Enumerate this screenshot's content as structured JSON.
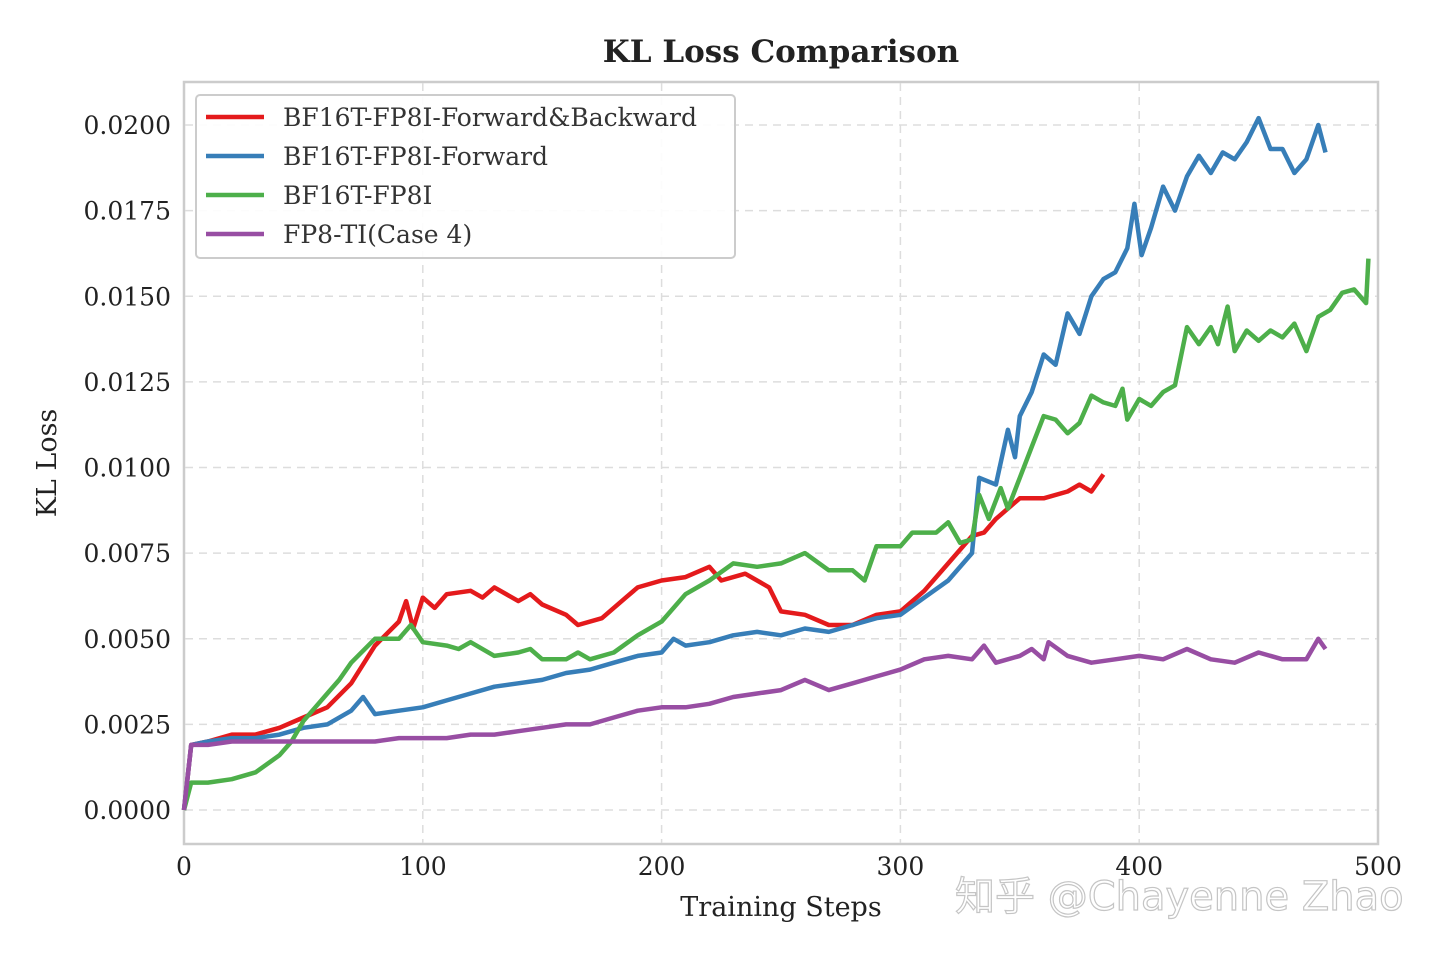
{
  "chart_data": {
    "type": "line",
    "title": "KL Loss Comparison",
    "xlabel": "Training Steps",
    "ylabel": "KL Loss",
    "xlim": [
      0,
      500
    ],
    "ylim": [
      -0.001,
      0.0213
    ],
    "xticks": [
      "0",
      "100",
      "200",
      "300",
      "400",
      "500"
    ],
    "xtick_values": [
      0,
      100,
      200,
      300,
      400,
      500
    ],
    "yticks": [
      "0.0000",
      "0.0025",
      "0.0050",
      "0.0075",
      "0.0100",
      "0.0125",
      "0.0150",
      "0.0175",
      "0.0200"
    ],
    "ytick_values": [
      0,
      0.0025,
      0.005,
      0.0075,
      0.01,
      0.0125,
      0.015,
      0.0175,
      0.02
    ],
    "grid": true,
    "legend_position": "top-left",
    "series": [
      {
        "name": "BF16T-FP8I-Forward&Backward",
        "color": "#e41a1c",
        "x": [
          0,
          3,
          10,
          20,
          30,
          40,
          50,
          60,
          70,
          80,
          90,
          93,
          96,
          100,
          105,
          110,
          120,
          125,
          130,
          140,
          145,
          150,
          160,
          165,
          175,
          185,
          190,
          200,
          210,
          220,
          225,
          235,
          245,
          250,
          260,
          270,
          280,
          290,
          300,
          310,
          320,
          330,
          335,
          340,
          350,
          360,
          370,
          375,
          380,
          385
        ],
        "y": [
          0,
          0.0019,
          0.002,
          0.0022,
          0.0022,
          0.0024,
          0.0027,
          0.003,
          0.0037,
          0.0048,
          0.0055,
          0.0061,
          0.0053,
          0.0062,
          0.0059,
          0.0063,
          0.0064,
          0.0062,
          0.0065,
          0.0061,
          0.0063,
          0.006,
          0.0057,
          0.0054,
          0.0056,
          0.0062,
          0.0065,
          0.0067,
          0.0068,
          0.0071,
          0.0067,
          0.0069,
          0.0065,
          0.0058,
          0.0057,
          0.0054,
          0.0054,
          0.0057,
          0.0058,
          0.0064,
          0.0072,
          0.008,
          0.0081,
          0.0085,
          0.0091,
          0.0091,
          0.0093,
          0.0095,
          0.0093,
          0.0098
        ]
      },
      {
        "name": "BF16T-FP8I-Forward",
        "color": "#377eb8",
        "x": [
          0,
          3,
          10,
          20,
          30,
          40,
          50,
          60,
          70,
          75,
          80,
          90,
          100,
          110,
          120,
          130,
          140,
          150,
          160,
          170,
          180,
          190,
          200,
          205,
          210,
          220,
          230,
          240,
          250,
          260,
          270,
          280,
          290,
          300,
          310,
          320,
          330,
          333,
          340,
          345,
          348,
          350,
          355,
          360,
          365,
          370,
          375,
          380,
          385,
          390,
          395,
          398,
          401,
          405,
          410,
          415,
          420,
          425,
          430,
          435,
          440,
          445,
          450,
          455,
          460,
          465,
          470,
          475,
          478
        ],
        "y": [
          0,
          0.0019,
          0.002,
          0.0021,
          0.0021,
          0.0022,
          0.0024,
          0.0025,
          0.0029,
          0.0033,
          0.0028,
          0.0029,
          0.003,
          0.0032,
          0.0034,
          0.0036,
          0.0037,
          0.0038,
          0.004,
          0.0041,
          0.0043,
          0.0045,
          0.0046,
          0.005,
          0.0048,
          0.0049,
          0.0051,
          0.0052,
          0.0051,
          0.0053,
          0.0052,
          0.0054,
          0.0056,
          0.0057,
          0.0062,
          0.0067,
          0.0075,
          0.0097,
          0.0095,
          0.0111,
          0.0103,
          0.0115,
          0.0122,
          0.0133,
          0.013,
          0.0145,
          0.0139,
          0.015,
          0.0155,
          0.0157,
          0.0164,
          0.0177,
          0.0162,
          0.017,
          0.0182,
          0.0175,
          0.0185,
          0.0191,
          0.0186,
          0.0192,
          0.019,
          0.0195,
          0.0202,
          0.0193,
          0.0193,
          0.0186,
          0.019,
          0.02,
          0.0192
        ]
      },
      {
        "name": "BF16T-FP8I",
        "color": "#4daf4a",
        "x": [
          0,
          3,
          10,
          20,
          30,
          40,
          45,
          50,
          55,
          60,
          65,
          70,
          80,
          90,
          95,
          100,
          110,
          115,
          120,
          130,
          140,
          145,
          150,
          160,
          165,
          170,
          180,
          190,
          200,
          210,
          220,
          230,
          240,
          250,
          260,
          270,
          280,
          285,
          290,
          300,
          305,
          315,
          320,
          325,
          330,
          333,
          337,
          342,
          345,
          350,
          355,
          360,
          365,
          370,
          375,
          380,
          385,
          390,
          393,
          395,
          400,
          405,
          410,
          415,
          420,
          425,
          430,
          433,
          437,
          440,
          445,
          450,
          455,
          460,
          465,
          470,
          475,
          480,
          485,
          490,
          495,
          496
        ],
        "y": [
          0,
          0.0008,
          0.0008,
          0.0009,
          0.0011,
          0.0016,
          0.002,
          0.0026,
          0.003,
          0.0034,
          0.0038,
          0.0043,
          0.005,
          0.005,
          0.0054,
          0.0049,
          0.0048,
          0.0047,
          0.0049,
          0.0045,
          0.0046,
          0.0047,
          0.0044,
          0.0044,
          0.0046,
          0.0044,
          0.0046,
          0.0051,
          0.0055,
          0.0063,
          0.0067,
          0.0072,
          0.0071,
          0.0072,
          0.0075,
          0.007,
          0.007,
          0.0067,
          0.0077,
          0.0077,
          0.0081,
          0.0081,
          0.0084,
          0.0078,
          0.0079,
          0.0092,
          0.0085,
          0.0094,
          0.0088,
          0.0097,
          0.0106,
          0.0115,
          0.0114,
          0.011,
          0.0113,
          0.0121,
          0.0119,
          0.0118,
          0.0123,
          0.0114,
          0.012,
          0.0118,
          0.0122,
          0.0124,
          0.0141,
          0.0136,
          0.0141,
          0.0136,
          0.0147,
          0.0134,
          0.014,
          0.0137,
          0.014,
          0.0138,
          0.0142,
          0.0134,
          0.0144,
          0.0146,
          0.0151,
          0.0152,
          0.0148,
          0.0161
        ]
      },
      {
        "name": "FP8-TI(Case 4)",
        "color": "#984ea3",
        "x": [
          0,
          3,
          10,
          20,
          30,
          40,
          50,
          60,
          70,
          80,
          90,
          100,
          110,
          120,
          130,
          140,
          150,
          160,
          170,
          180,
          190,
          200,
          210,
          220,
          230,
          240,
          250,
          260,
          270,
          280,
          290,
          300,
          310,
          320,
          330,
          335,
          340,
          350,
          355,
          360,
          362,
          370,
          380,
          390,
          400,
          410,
          420,
          430,
          440,
          450,
          460,
          470,
          475,
          478
        ],
        "y": [
          0,
          0.0019,
          0.0019,
          0.002,
          0.002,
          0.002,
          0.002,
          0.002,
          0.002,
          0.002,
          0.0021,
          0.0021,
          0.0021,
          0.0022,
          0.0022,
          0.0023,
          0.0024,
          0.0025,
          0.0025,
          0.0027,
          0.0029,
          0.003,
          0.003,
          0.0031,
          0.0033,
          0.0034,
          0.0035,
          0.0038,
          0.0035,
          0.0037,
          0.0039,
          0.0041,
          0.0044,
          0.0045,
          0.0044,
          0.0048,
          0.0043,
          0.0045,
          0.0047,
          0.0044,
          0.0049,
          0.0045,
          0.0043,
          0.0044,
          0.0045,
          0.0044,
          0.0047,
          0.0044,
          0.0043,
          0.0046,
          0.0044,
          0.0044,
          0.005,
          0.0047
        ]
      }
    ]
  },
  "watermark": "知乎 @Chayenne Zhao"
}
